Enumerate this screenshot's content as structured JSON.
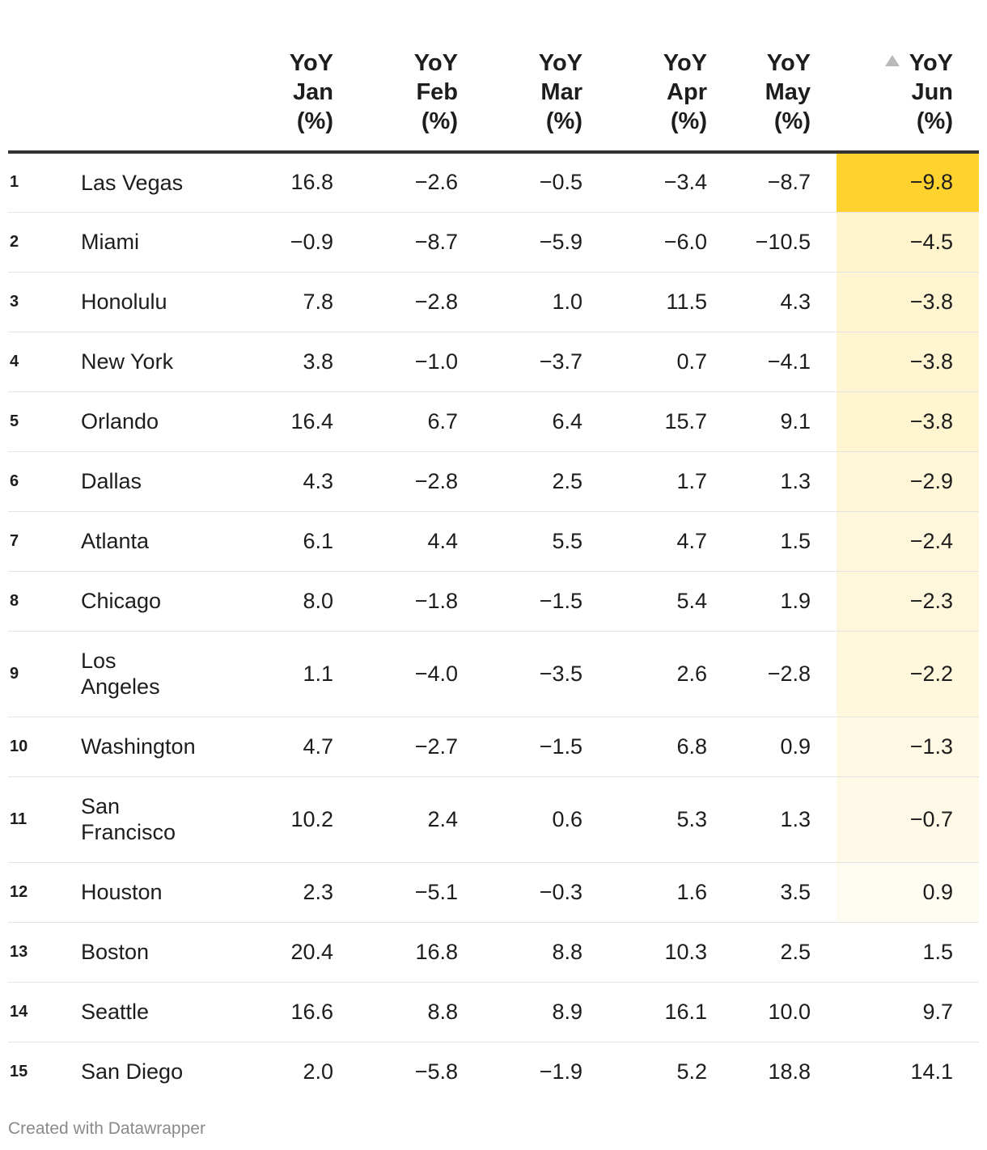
{
  "chart_data": {
    "type": "table",
    "columns": [
      {
        "key": "rank",
        "label": [
          "",
          "",
          ""
        ]
      },
      {
        "key": "city",
        "label": [
          "",
          "",
          ""
        ]
      },
      {
        "key": "jan",
        "label": [
          "YoY",
          "Jan",
          "(%)"
        ]
      },
      {
        "key": "feb",
        "label": [
          "YoY",
          "Feb",
          "(%)"
        ]
      },
      {
        "key": "mar",
        "label": [
          "YoY",
          "Mar",
          "(%)"
        ]
      },
      {
        "key": "apr",
        "label": [
          "YoY",
          "Apr",
          "(%)"
        ]
      },
      {
        "key": "may",
        "label": [
          "YoY",
          "May",
          "(%)"
        ]
      },
      {
        "key": "jun",
        "label": [
          "YoY",
          "Jun",
          "(%)"
        ]
      }
    ],
    "sorted_by": "jun",
    "sort_direction": "ascending",
    "highlight_color": "#ffd22e",
    "highlight_base": "#ffffff",
    "rows": [
      {
        "rank": "1",
        "city": "Las Vegas",
        "jan": "16.8",
        "feb": "−2.6",
        "mar": "−0.5",
        "apr": "−3.4",
        "may": "−8.7",
        "jun": "−9.8"
      },
      {
        "rank": "2",
        "city": "Miami",
        "jan": "−0.9",
        "feb": "−8.7",
        "mar": "−5.9",
        "apr": "−6.0",
        "may": "−10.5",
        "jun": "−4.5"
      },
      {
        "rank": "3",
        "city": "Honolulu",
        "jan": "7.8",
        "feb": "−2.8",
        "mar": "1.0",
        "apr": "11.5",
        "may": "4.3",
        "jun": "−3.8"
      },
      {
        "rank": "4",
        "city": "New York",
        "jan": "3.8",
        "feb": "−1.0",
        "mar": "−3.7",
        "apr": "0.7",
        "may": "−4.1",
        "jun": "−3.8"
      },
      {
        "rank": "5",
        "city": "Orlando",
        "jan": "16.4",
        "feb": "6.7",
        "mar": "6.4",
        "apr": "15.7",
        "may": "9.1",
        "jun": "−3.8"
      },
      {
        "rank": "6",
        "city": "Dallas",
        "jan": "4.3",
        "feb": "−2.8",
        "mar": "2.5",
        "apr": "1.7",
        "may": "1.3",
        "jun": "−2.9"
      },
      {
        "rank": "7",
        "city": "Atlanta",
        "jan": "6.1",
        "feb": "4.4",
        "mar": "5.5",
        "apr": "4.7",
        "may": "1.5",
        "jun": "−2.4"
      },
      {
        "rank": "8",
        "city": "Chicago",
        "jan": "8.0",
        "feb": "−1.8",
        "mar": "−1.5",
        "apr": "5.4",
        "may": "1.9",
        "jun": "−2.3"
      },
      {
        "rank": "9",
        "city": "Los Angeles",
        "jan": "1.1",
        "feb": "−4.0",
        "mar": "−3.5",
        "apr": "2.6",
        "may": "−2.8",
        "jun": "−2.2"
      },
      {
        "rank": "10",
        "city": "Washington",
        "jan": "4.7",
        "feb": "−2.7",
        "mar": "−1.5",
        "apr": "6.8",
        "may": "0.9",
        "jun": "−1.3"
      },
      {
        "rank": "11",
        "city": "San Francisco",
        "jan": "10.2",
        "feb": "2.4",
        "mar": "0.6",
        "apr": "5.3",
        "may": "1.3",
        "jun": "−0.7"
      },
      {
        "rank": "12",
        "city": "Houston",
        "jan": "2.3",
        "feb": "−5.1",
        "mar": "−0.3",
        "apr": "1.6",
        "may": "3.5",
        "jun": "0.9"
      },
      {
        "rank": "13",
        "city": "Boston",
        "jan": "20.4",
        "feb": "16.8",
        "mar": "8.8",
        "apr": "10.3",
        "may": "2.5",
        "jun": "1.5"
      },
      {
        "rank": "14",
        "city": "Seattle",
        "jan": "16.6",
        "feb": "8.8",
        "mar": "8.9",
        "apr": "16.1",
        "may": "10.0",
        "jun": "9.7"
      },
      {
        "rank": "15",
        "city": "San Diego",
        "jan": "2.0",
        "feb": "−5.8",
        "mar": "−1.9",
        "apr": "5.2",
        "may": "18.8",
        "jun": "14.1"
      }
    ]
  },
  "footer": {
    "credit": "Created with Datawrapper"
  }
}
